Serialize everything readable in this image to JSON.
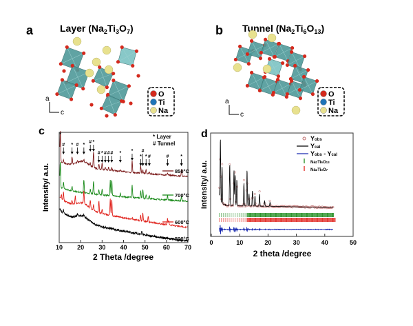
{
  "panels": {
    "a": {
      "letter": "a",
      "title": "Layer (Na",
      "sub1": "2",
      "mid1": "Ti",
      "sub2": "3",
      "mid2": "O",
      "sub3": "7",
      "end": ")",
      "axis_a": "a",
      "axis_c": "c",
      "legend": [
        "O",
        "Ti",
        "Na"
      ]
    },
    "b": {
      "letter": "b",
      "title": "Tunnel (Na",
      "sub1": "2",
      "mid1": "Ti",
      "sub2": "6",
      "mid2": "O",
      "sub3": "13",
      "end": ")",
      "axis_a": "a",
      "axis_c": "c",
      "legend": [
        "O",
        "Ti",
        "Na"
      ]
    },
    "c": {
      "letter": "c"
    },
    "d": {
      "letter": "d"
    }
  },
  "colors": {
    "O": "#d42a1e",
    "Ti": "#1f74b8",
    "Na": "#e8e18e",
    "polyhedra": "#4f9a9a",
    "polyhedra_light": "#7cc3c3"
  },
  "chart_data": [
    {
      "type": "line",
      "panel": "c",
      "xlabel": "2 Theta /degree",
      "ylabel": "Intensity/ a.u.",
      "xlim": [
        10,
        70
      ],
      "xticks": [
        10,
        20,
        30,
        40,
        50,
        60,
        70
      ],
      "legend": {
        "layer": "Layer",
        "layer_symbol": "*",
        "tunnel": "Tunnel",
        "tunnel_symbol": "#"
      },
      "series": [
        {
          "name": "850°C",
          "color": "#7a1a1a",
          "peaks": [
            [
              10.5,
              60
            ],
            [
              12,
              6
            ],
            [
              16,
              14
            ],
            [
              18.5,
              4
            ],
            [
              21.5,
              4
            ],
            [
              24.5,
              5
            ],
            [
              26,
              30
            ],
            [
              28.5,
              10
            ],
            [
              30,
              12
            ],
            [
              31.5,
              6
            ],
            [
              33,
              5
            ],
            [
              34.5,
              7
            ],
            [
              38.5,
              3
            ],
            [
              44,
              22
            ],
            [
              48,
              14
            ],
            [
              49,
              6
            ],
            [
              50.5,
              8
            ],
            [
              52,
              3
            ],
            [
              60.5,
              3
            ],
            [
              67,
              12
            ]
          ]
        },
        {
          "name": "700°C",
          "color": "#1a8a1a",
          "peaks": [
            [
              10.5,
              45
            ],
            [
              12,
              12
            ],
            [
              16,
              8
            ],
            [
              21.5,
              22
            ],
            [
              24.5,
              8
            ],
            [
              26,
              22
            ],
            [
              28.5,
              8
            ],
            [
              30,
              10
            ],
            [
              33.8,
              26
            ],
            [
              34.5,
              28
            ],
            [
              38.5,
              6
            ],
            [
              44,
              22
            ],
            [
              48,
              12
            ],
            [
              49,
              16
            ],
            [
              50.5,
              6
            ],
            [
              52,
              6
            ],
            [
              60.5,
              8
            ],
            [
              67,
              8
            ]
          ]
        },
        {
          "name": "600°C",
          "color": "#e0201a",
          "peaks": [
            [
              11,
              8
            ],
            [
              12,
              16
            ],
            [
              16,
              6
            ],
            [
              17.5,
              14
            ],
            [
              21.5,
              24
            ],
            [
              24.5,
              16
            ],
            [
              26,
              12
            ],
            [
              28.5,
              22
            ],
            [
              30,
              8
            ],
            [
              33.8,
              32
            ],
            [
              34.5,
              32
            ],
            [
              44,
              4
            ],
            [
              48,
              10
            ],
            [
              49,
              16
            ],
            [
              51.5,
              10
            ],
            [
              60.5,
              12
            ],
            [
              61,
              8
            ]
          ]
        },
        {
          "name": "500°C",
          "color": "#000000",
          "peaks": [
            [
              12,
              6
            ],
            [
              18.5,
              4
            ],
            [
              21.5,
              4
            ],
            [
              24.5,
              3
            ],
            [
              48.5,
              5
            ]
          ]
        }
      ],
      "annotations": [
        {
          "x": 10.5,
          "symbol": "*"
        },
        {
          "x": 12,
          "symbol": "#"
        },
        {
          "x": 16,
          "symbol": "*"
        },
        {
          "x": 18.5,
          "symbol": "#"
        },
        {
          "x": 21.5,
          "symbol": "*"
        },
        {
          "x": 24.5,
          "symbol": "#"
        },
        {
          "x": 26,
          "symbol": "*"
        },
        {
          "x": 28.5,
          "symbol": "#"
        },
        {
          "x": 30,
          "symbol": "*"
        },
        {
          "x": 31.5,
          "symbol": "#"
        },
        {
          "x": 33,
          "symbol": "#"
        },
        {
          "x": 34.5,
          "symbol": "#"
        },
        {
          "x": 38.5,
          "symbol": "*"
        },
        {
          "x": 44,
          "symbol": "*"
        },
        {
          "x": 48,
          "symbol": "*"
        },
        {
          "x": 49,
          "symbol": "#"
        },
        {
          "x": 50.5,
          "symbol": "*"
        },
        {
          "x": 52,
          "symbol": "#"
        },
        {
          "x": 60.5,
          "symbol": "#"
        },
        {
          "x": 67,
          "symbol": "*"
        }
      ]
    },
    {
      "type": "line",
      "panel": "d",
      "xlabel": "2 theta /degree",
      "ylabel": "Intensity/ a.u.",
      "xlim": [
        0,
        50
      ],
      "xticks": [
        0,
        10,
        20,
        30,
        40,
        50
      ],
      "legend": [
        {
          "label": "Y",
          "sub": "obs",
          "color": "#c07070",
          "marker": "circle"
        },
        {
          "label": "Y",
          "sub": "cal",
          "color": "#000000",
          "marker": "line"
        },
        {
          "label": "Y",
          "sub": "obs",
          "mid": " - Y",
          "sub2": "cal",
          "color": "#1a2ab0",
          "marker": "line"
        },
        {
          "label": "Na",
          "sub": "2",
          "mid": "Ti",
          "sub2": "6",
          "mid2": "O",
          "sub3": "13",
          "color": "#1a8a1a",
          "marker": "tick"
        },
        {
          "label": "Na",
          "sub": "2",
          "mid": "Ti",
          "sub2": "3",
          "mid2": "O",
          "sub3": "7",
          "color": "#e0201a",
          "marker": "tick"
        }
      ],
      "x_range": [
        2.8,
        43
      ],
      "peaks": [
        [
          2.9,
          20
        ],
        [
          3.2,
          95
        ],
        [
          3.8,
          55
        ],
        [
          6.5,
          60
        ],
        [
          8,
          52
        ],
        [
          8.4,
          45
        ],
        [
          9,
          38
        ],
        [
          11.5,
          33
        ],
        [
          12.6,
          52
        ],
        [
          13.3,
          18
        ],
        [
          14.5,
          22
        ],
        [
          15.4,
          15
        ],
        [
          17,
          18
        ],
        [
          18.8,
          8
        ],
        [
          20.7,
          6
        ]
      ],
      "tick_ranges": {
        "Na2Ti6O13": [
          2.8,
          43.2
        ],
        "Na2Ti3O7": [
          2.8,
          43.8
        ]
      }
    }
  ]
}
